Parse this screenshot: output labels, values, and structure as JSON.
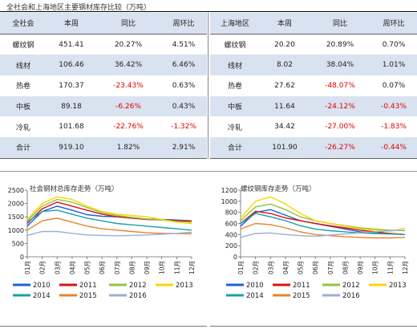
{
  "header": {
    "title": "全社会和上海地区主要钢材库存比较（万吨）"
  },
  "table_left": {
    "headers": [
      "全社会",
      "本周",
      "同比",
      "周环比"
    ],
    "rows": [
      [
        "螺纹钢",
        "451.41",
        "20.27%",
        "4.51%"
      ],
      [
        "线材",
        "106.46",
        "36.42%",
        "6.46%"
      ],
      [
        "热卷",
        "170.37",
        "-23.43%",
        "0.63%"
      ],
      [
        "中板",
        "89.18",
        "-6.26%",
        "0.43%"
      ],
      [
        "冷轧",
        "101.68",
        "-22.76%",
        "-1.32%"
      ],
      [
        "合计",
        "919.10",
        "1.82%",
        "2.91%"
      ]
    ]
  },
  "table_right": {
    "headers": [
      "上海地区",
      "本周",
      "同比",
      "周环比"
    ],
    "rows": [
      [
        "螺纹钢",
        "20.20",
        "20.89%",
        "0.70%"
      ],
      [
        "线材",
        "8.02",
        "38.04%",
        "1.01%"
      ],
      [
        "热卷",
        "27.62",
        "-48.07%",
        "0.07%"
      ],
      [
        "中板",
        "11.64",
        "-24.12%",
        "-0.43%"
      ],
      [
        "冷轧",
        "34.42",
        "-27.00%",
        "-1.83%"
      ],
      [
        "合计",
        "101.90",
        "-26.27%",
        "-0.44%"
      ]
    ]
  },
  "colors": {
    "2010": "#1f5fd6",
    "2011": "#e01010",
    "2012": "#8dc63f",
    "2013": "#ffd400",
    "2014": "#1aa0a8",
    "2015": "#e8842a",
    "2016": "#9aaed6",
    "shade": "#d9e2f0",
    "negative": "#e00000"
  },
  "chart_data": [
    {
      "type": "line",
      "title": "社会钢材总库存走势（万吨）",
      "xlabel": "",
      "ylabel": "",
      "x": [
        "01月",
        "02月",
        "03月",
        "04月",
        "05月",
        "06月",
        "07月",
        "08月",
        "09月",
        "10月",
        "11月",
        "12月"
      ],
      "ylim": [
        0,
        2500
      ],
      "yticks": [
        0,
        500,
        1000,
        1500,
        2000,
        2500
      ],
      "legend": "bottom",
      "series": [
        {
          "name": "2010",
          "values": [
            1150,
            1700,
            1900,
            1750,
            1580,
            1520,
            1500,
            1480,
            1420,
            1400,
            1380,
            1350
          ]
        },
        {
          "name": "2011",
          "values": [
            1250,
            1800,
            2050,
            1900,
            1750,
            1600,
            1500,
            1450,
            1400,
            1380,
            1350,
            1340
          ]
        },
        {
          "name": "2012",
          "values": [
            1350,
            1900,
            2150,
            2050,
            1850,
            1650,
            1550,
            1480,
            1420,
            1380,
            1320,
            1300
          ]
        },
        {
          "name": "2013",
          "values": [
            1400,
            2000,
            2250,
            2150,
            1900,
            1700,
            1600,
            1550,
            1500,
            1400,
            1300,
            1250
          ]
        },
        {
          "name": "2014",
          "values": [
            1300,
            1700,
            1750,
            1600,
            1450,
            1350,
            1250,
            1200,
            1150,
            1100,
            1050,
            1000
          ]
        },
        {
          "name": "2015",
          "values": [
            1000,
            1350,
            1450,
            1300,
            1150,
            1050,
            1000,
            950,
            900,
            880,
            870,
            860
          ]
        },
        {
          "name": "2016",
          "values": [
            800,
            950,
            950,
            880,
            820,
            800,
            790,
            800,
            820,
            850,
            880,
            920
          ]
        }
      ]
    },
    {
      "type": "line",
      "title": "螺纹钢库存走势（万吨）",
      "xlabel": "",
      "ylabel": "",
      "x": [
        "01月",
        "02月",
        "03月",
        "04月",
        "05月",
        "06月",
        "07月",
        "08月",
        "09月",
        "10月",
        "11月",
        "12月"
      ],
      "ylim": [
        0,
        1200
      ],
      "yticks": [
        0,
        200,
        400,
        600,
        800,
        1000,
        1200
      ],
      "legend": "bottom",
      "series": [
        {
          "name": "2010",
          "values": [
            550,
            800,
            850,
            750,
            650,
            600,
            550,
            500,
            450,
            430,
            420,
            400
          ]
        },
        {
          "name": "2011",
          "values": [
            600,
            820,
            780,
            700,
            650,
            600,
            560,
            520,
            480,
            450,
            420,
            400
          ]
        },
        {
          "name": "2012",
          "values": [
            650,
            900,
            950,
            850,
            720,
            650,
            600,
            560,
            520,
            500,
            480,
            470
          ]
        },
        {
          "name": "2013",
          "values": [
            700,
            1000,
            1080,
            950,
            780,
            650,
            600,
            550,
            500,
            480,
            460,
            520
          ]
        },
        {
          "name": "2014",
          "values": [
            600,
            780,
            720,
            650,
            560,
            500,
            470,
            450,
            430,
            420,
            410,
            400
          ]
        },
        {
          "name": "2015",
          "values": [
            500,
            600,
            580,
            520,
            450,
            400,
            380,
            360,
            350,
            340,
            340,
            350
          ]
        },
        {
          "name": "2016",
          "values": [
            350,
            420,
            430,
            400,
            380,
            370,
            390,
            410,
            430,
            450,
            470,
            480
          ]
        }
      ]
    }
  ]
}
